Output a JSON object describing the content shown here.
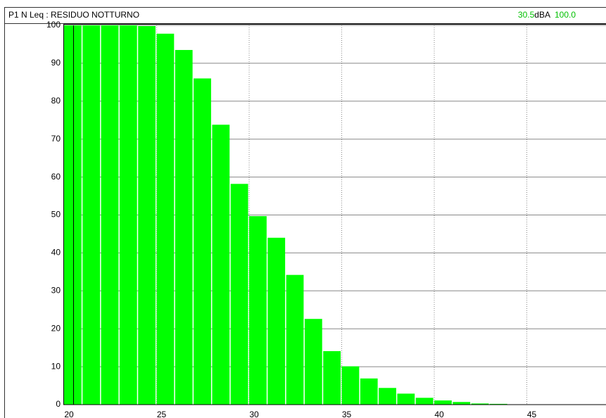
{
  "chart_data": {
    "type": "histogram",
    "title": "P1 N  Leq : RESIDUO NOTTURNO",
    "readout_value": "30.5",
    "readout_unit": "dBA",
    "readout_percent": "100.0",
    "bins": [
      20,
      21,
      22,
      23,
      24,
      25,
      26,
      27,
      28,
      29,
      30,
      31,
      32,
      33,
      34,
      35,
      36,
      37,
      38,
      39,
      40,
      41,
      42,
      43,
      44
    ],
    "values": [
      100,
      100,
      100,
      100,
      99.8,
      97.8,
      93.5,
      86,
      73.8,
      58.2,
      49.7,
      44,
      34.2,
      22.6,
      14.1,
      10.1,
      6.9,
      4.4,
      2.9,
      1.8,
      1.1,
      0.7,
      0.3,
      0.2
    ],
    "color": "#00ff00",
    "xlim": [
      20,
      49.3
    ],
    "xticks": [
      20,
      25,
      30,
      35,
      40,
      45
    ],
    "ylim": [
      0,
      100
    ],
    "yticks": [
      0,
      10,
      20,
      30,
      40,
      50,
      60,
      70,
      80,
      90,
      100
    ],
    "grid": true
  }
}
